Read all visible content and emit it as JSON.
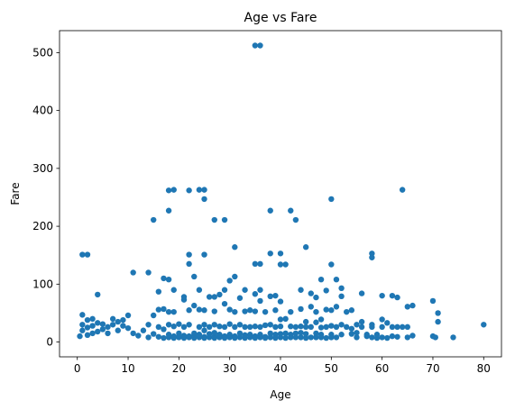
{
  "chart_data": {
    "type": "scatter",
    "title": "Age vs Fare",
    "xlabel": "Age",
    "ylabel": "Fare",
    "xlim": [
      -3.5,
      83.5
    ],
    "ylim": [
      -25.6,
      538.0
    ],
    "xticks": [
      0,
      10,
      20,
      30,
      40,
      50,
      60,
      70,
      80
    ],
    "yticks": [
      0,
      100,
      200,
      300,
      400,
      500
    ],
    "grid": false,
    "legend": "none",
    "marker_color": "#1f77b4",
    "points": [
      [
        35,
        512.3
      ],
      [
        36,
        512.3
      ],
      [
        18,
        262
      ],
      [
        19,
        263
      ],
      [
        22,
        262
      ],
      [
        24,
        263
      ],
      [
        25,
        263
      ],
      [
        64,
        263
      ],
      [
        18,
        227
      ],
      [
        38,
        227
      ],
      [
        42,
        227
      ],
      [
        43,
        211
      ],
      [
        15,
        211
      ],
      [
        27,
        211
      ],
      [
        29,
        211
      ],
      [
        25,
        247
      ],
      [
        50,
        247
      ],
      [
        1,
        151
      ],
      [
        2,
        151
      ],
      [
        22,
        151
      ],
      [
        25,
        151
      ],
      [
        58,
        153
      ],
      [
        38,
        153
      ],
      [
        40,
        153
      ],
      [
        45,
        164
      ],
      [
        31,
        164
      ],
      [
        22,
        135
      ],
      [
        35,
        135
      ],
      [
        36,
        135
      ],
      [
        40,
        134
      ],
      [
        41,
        134
      ],
      [
        50,
        134
      ],
      [
        58,
        146
      ],
      [
        11,
        120
      ],
      [
        14,
        120
      ],
      [
        17,
        110
      ],
      [
        18,
        108
      ],
      [
        23,
        113
      ],
      [
        31,
        113
      ],
      [
        48,
        108
      ],
      [
        51,
        108
      ],
      [
        60,
        80
      ],
      [
        62,
        80
      ],
      [
        63,
        77
      ],
      [
        70,
        71
      ],
      [
        71,
        50
      ],
      [
        66,
        63
      ],
      [
        4,
        82
      ],
      [
        16,
        87
      ],
      [
        19,
        90
      ],
      [
        21,
        78
      ],
      [
        24,
        90
      ],
      [
        27,
        78
      ],
      [
        29,
        90
      ],
      [
        33,
        90
      ],
      [
        36,
        90
      ],
      [
        44,
        90
      ],
      [
        46,
        84
      ],
      [
        49,
        89
      ],
      [
        52,
        93
      ],
      [
        56,
        84
      ],
      [
        39,
        80
      ],
      [
        40,
        70
      ],
      [
        47,
        77
      ],
      [
        0.5,
        10
      ],
      [
        1,
        20
      ],
      [
        1,
        30
      ],
      [
        1,
        47
      ],
      [
        2,
        12
      ],
      [
        2,
        25
      ],
      [
        2,
        38
      ],
      [
        3,
        15
      ],
      [
        3,
        28
      ],
      [
        3,
        40
      ],
      [
        4,
        18
      ],
      [
        4,
        33
      ],
      [
        5,
        22
      ],
      [
        5,
        31
      ],
      [
        6,
        15
      ],
      [
        6,
        26
      ],
      [
        7,
        30
      ],
      [
        7,
        40
      ],
      [
        8,
        20
      ],
      [
        8,
        35
      ],
      [
        9,
        28
      ],
      [
        9,
        38
      ],
      [
        10,
        24
      ],
      [
        10,
        46
      ],
      [
        11,
        15
      ],
      [
        12,
        11
      ],
      [
        13,
        20
      ],
      [
        14,
        8
      ],
      [
        14,
        30
      ],
      [
        15,
        14
      ],
      [
        15,
        46
      ],
      [
        16,
        9
      ],
      [
        16,
        26
      ],
      [
        16,
        56
      ],
      [
        17,
        7
      ],
      [
        17,
        22
      ],
      [
        17,
        57
      ],
      [
        18,
        8
      ],
      [
        18,
        13
      ],
      [
        18,
        30
      ],
      [
        18,
        52
      ],
      [
        19,
        7
      ],
      [
        19,
        10
      ],
      [
        19,
        27
      ],
      [
        19,
        52
      ],
      [
        20,
        8
      ],
      [
        20,
        9
      ],
      [
        20,
        15
      ],
      [
        20,
        31
      ],
      [
        21,
        7
      ],
      [
        21,
        11
      ],
      [
        21,
        26
      ],
      [
        21,
        73
      ],
      [
        22,
        8
      ],
      [
        22,
        10
      ],
      [
        22,
        30
      ],
      [
        22,
        55
      ],
      [
        23,
        7
      ],
      [
        23,
        12
      ],
      [
        23,
        15
      ],
      [
        23,
        63
      ],
      [
        24,
        8
      ],
      [
        24,
        13
      ],
      [
        24,
        26
      ],
      [
        24,
        56
      ],
      [
        25,
        7
      ],
      [
        25,
        9
      ],
      [
        25,
        20
      ],
      [
        25,
        30
      ],
      [
        25,
        55
      ],
      [
        26,
        8
      ],
      [
        26,
        14
      ],
      [
        26,
        26
      ],
      [
        26,
        78
      ],
      [
        27,
        7
      ],
      [
        27,
        10
      ],
      [
        27,
        16
      ],
      [
        27,
        30
      ],
      [
        27,
        53
      ],
      [
        28,
        8
      ],
      [
        28,
        13
      ],
      [
        28,
        27
      ],
      [
        28,
        82
      ],
      [
        29,
        7
      ],
      [
        29,
        10
      ],
      [
        29,
        26
      ],
      [
        29,
        66
      ],
      [
        30,
        8
      ],
      [
        30,
        13
      ],
      [
        30,
        31
      ],
      [
        30,
        56
      ],
      [
        30,
        106
      ],
      [
        31,
        7
      ],
      [
        31,
        10
      ],
      [
        31,
        26
      ],
      [
        31,
        52
      ],
      [
        32,
        8
      ],
      [
        32,
        15
      ],
      [
        32,
        30
      ],
      [
        32,
        76
      ],
      [
        33,
        7
      ],
      [
        33,
        12
      ],
      [
        33,
        26
      ],
      [
        33,
        53
      ],
      [
        34,
        8
      ],
      [
        34,
        13
      ],
      [
        34,
        26
      ],
      [
        34,
        55
      ],
      [
        35,
        7
      ],
      [
        35,
        10
      ],
      [
        35,
        27
      ],
      [
        35,
        53
      ],
      [
        35,
        83
      ],
      [
        36,
        8
      ],
      [
        36,
        13
      ],
      [
        36,
        26
      ],
      [
        36,
        71
      ],
      [
        37,
        7
      ],
      [
        37,
        9
      ],
      [
        37,
        29
      ],
      [
        37,
        52
      ],
      [
        38,
        8
      ],
      [
        38,
        15
      ],
      [
        38,
        30
      ],
      [
        38,
        79
      ],
      [
        39,
        7
      ],
      [
        39,
        13
      ],
      [
        39,
        26
      ],
      [
        39,
        55
      ],
      [
        40,
        8
      ],
      [
        40,
        14
      ],
      [
        40,
        27
      ],
      [
        40,
        39
      ],
      [
        41,
        7
      ],
      [
        41,
        15
      ],
      [
        41,
        40
      ],
      [
        42,
        8
      ],
      [
        42,
        13
      ],
      [
        42,
        27
      ],
      [
        42,
        52
      ],
      [
        43,
        8
      ],
      [
        43,
        15
      ],
      [
        43,
        26
      ],
      [
        44,
        8
      ],
      [
        44,
        16
      ],
      [
        44,
        27
      ],
      [
        44,
        57
      ],
      [
        45,
        7
      ],
      [
        45,
        14
      ],
      [
        45,
        26
      ],
      [
        45,
        35
      ],
      [
        46,
        8
      ],
      [
        46,
        26
      ],
      [
        46,
        61
      ],
      [
        47,
        8
      ],
      [
        47,
        15
      ],
      [
        47,
        34
      ],
      [
        47,
        52
      ],
      [
        48,
        8
      ],
      [
        48,
        13
      ],
      [
        48,
        25
      ],
      [
        48,
        39
      ],
      [
        49,
        7
      ],
      [
        49,
        26
      ],
      [
        49,
        56
      ],
      [
        50,
        8
      ],
      [
        50,
        13
      ],
      [
        50,
        28
      ],
      [
        50,
        55
      ],
      [
        51,
        8
      ],
      [
        51,
        26
      ],
      [
        51,
        61
      ],
      [
        52,
        13
      ],
      [
        52,
        30
      ],
      [
        52,
        79
      ],
      [
        53,
        26
      ],
      [
        53,
        52
      ],
      [
        54,
        14
      ],
      [
        54,
        23
      ],
      [
        54,
        55
      ],
      [
        55,
        8
      ],
      [
        55,
        16
      ],
      [
        55,
        30
      ],
      [
        56,
        26
      ],
      [
        56,
        35
      ],
      [
        57,
        10
      ],
      [
        57,
        13
      ],
      [
        58,
        8
      ],
      [
        58,
        30
      ],
      [
        58,
        26
      ],
      [
        59,
        7
      ],
      [
        59,
        13
      ],
      [
        60,
        8
      ],
      [
        60,
        26
      ],
      [
        60,
        39
      ],
      [
        61,
        7
      ],
      [
        61,
        33
      ],
      [
        62,
        10
      ],
      [
        62,
        26
      ],
      [
        63,
        9
      ],
      [
        63,
        26
      ],
      [
        64,
        26
      ],
      [
        65,
        8
      ],
      [
        65,
        26
      ],
      [
        65,
        61
      ],
      [
        66,
        11
      ],
      [
        70,
        10
      ],
      [
        70.5,
        8
      ],
      [
        71,
        35
      ],
      [
        74,
        8
      ],
      [
        80,
        30
      ]
    ]
  }
}
